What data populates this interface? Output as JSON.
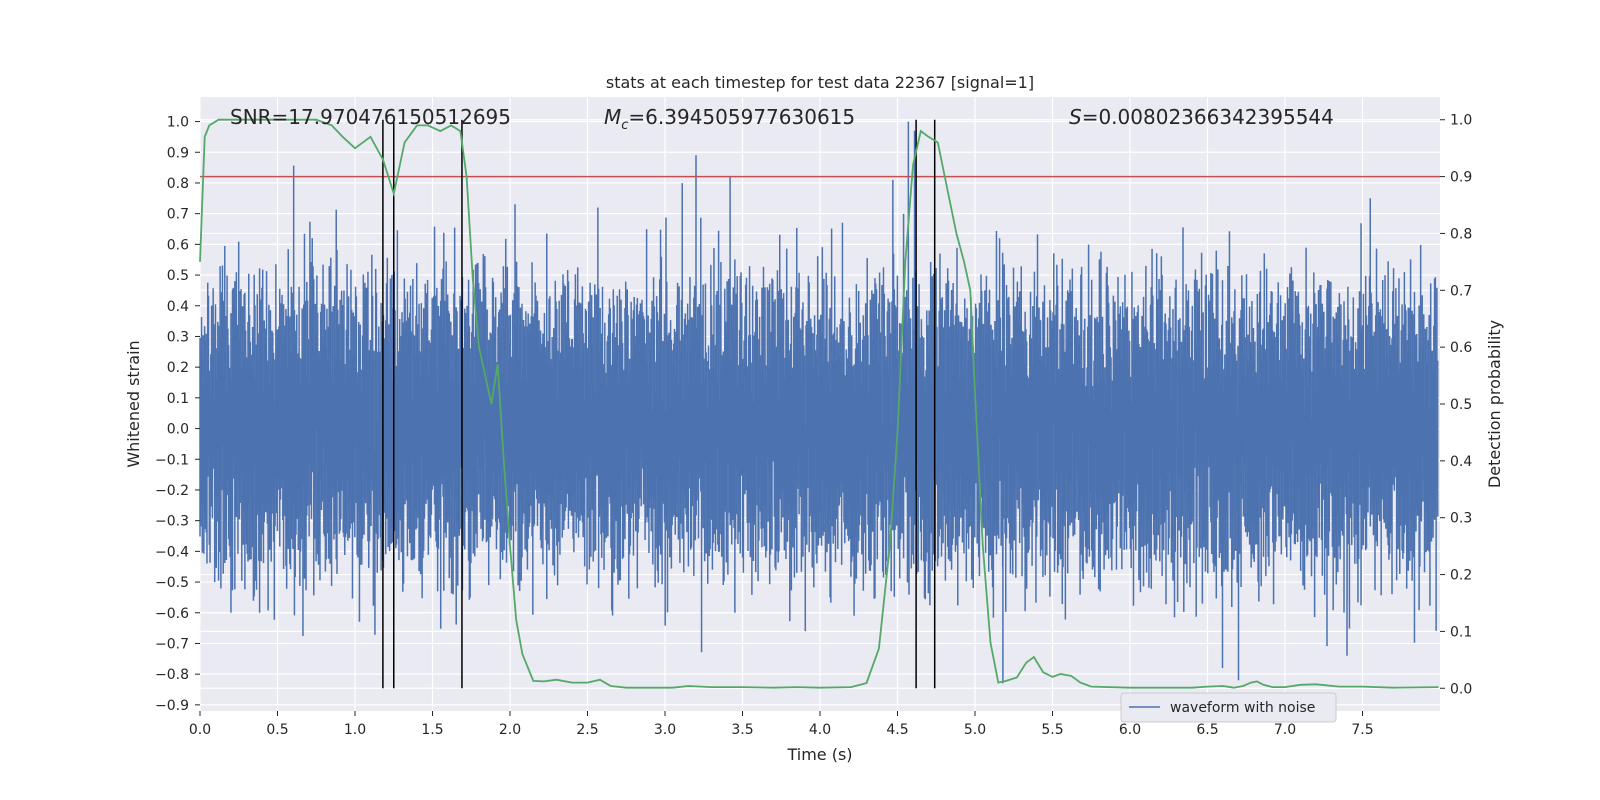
{
  "chart_data": {
    "type": "line",
    "title": "stats at each timestep for test data 22367 [signal=1]",
    "xlabel": "Time (s)",
    "ylabel": "Whitened strain",
    "y2label": "Detection probability",
    "xlim": [
      0.0,
      8.0
    ],
    "ylim": [
      -0.92,
      1.08
    ],
    "y2lim": [
      -0.04,
      1.04
    ],
    "x_ticks": [
      "0.0",
      "0.5",
      "1.0",
      "1.5",
      "2.0",
      "2.5",
      "3.0",
      "3.5",
      "4.0",
      "4.5",
      "5.0",
      "5.5",
      "6.0",
      "6.5",
      "7.0",
      "7.5"
    ],
    "y_ticks": [
      "1.0",
      "0.9",
      "0.8",
      "0.7",
      "0.6",
      "0.5",
      "0.4",
      "0.3",
      "0.2",
      "0.1",
      "0.0",
      "−0.1",
      "−0.2",
      "−0.3",
      "−0.4",
      "−0.5",
      "−0.6",
      "−0.7",
      "−0.8",
      "−0.9"
    ],
    "y2_ticks": [
      "1.0",
      "0.9",
      "0.8",
      "0.7",
      "0.6",
      "0.5",
      "0.4",
      "0.3",
      "0.2",
      "0.1",
      "0.0"
    ],
    "grid": true,
    "legend_position": "lower-right",
    "annotations": {
      "snr": "SNR=17.970476150512695",
      "mc_symbol": "M",
      "mc_sub": "c",
      "mc_value": "=6.394505977630615",
      "s_symbol": "S",
      "s_value": "=0.00802366342395544"
    },
    "threshold": {
      "y2": 0.9,
      "color": "#c44e52"
    },
    "vertical_lines_x": [
      1.18,
      1.25,
      1.69,
      4.62,
      4.74
    ],
    "series": [
      {
        "name": "waveform with noise",
        "axis": "left",
        "color": "#4c72b0",
        "envelope_hint": {
          "typical_amplitude": 0.3,
          "peak_max": 1.0,
          "peak_min": -0.83,
          "samples": 1600,
          "seed": 22367
        }
      },
      {
        "axis": "right",
        "color": "#55a868",
        "x": [
          0.0,
          0.03,
          0.06,
          0.12,
          0.2,
          0.3,
          0.45,
          0.6,
          0.75,
          0.85,
          0.92,
          1.0,
          1.1,
          1.18,
          1.25,
          1.32,
          1.4,
          1.47,
          1.55,
          1.62,
          1.68,
          1.72,
          1.76,
          1.8,
          1.84,
          1.88,
          1.92,
          1.96,
          2.0,
          2.04,
          2.08,
          2.15,
          2.22,
          2.3,
          2.4,
          2.5,
          2.58,
          2.65,
          2.75,
          2.9,
          3.05,
          3.15,
          3.3,
          3.5,
          3.7,
          3.85,
          4.0,
          4.2,
          4.3,
          4.38,
          4.45,
          4.5,
          4.55,
          4.6,
          4.65,
          4.7,
          4.76,
          4.82,
          4.88,
          4.93,
          4.97,
          5.0,
          5.05,
          5.1,
          5.15,
          5.2,
          5.27,
          5.33,
          5.38,
          5.44,
          5.5,
          5.55,
          5.62,
          5.68,
          5.75,
          6.0,
          6.2,
          6.4,
          6.5,
          6.6,
          6.67,
          6.73,
          6.78,
          6.82,
          6.86,
          6.92,
          7.0,
          7.1,
          7.2,
          7.35,
          7.5,
          7.7,
          7.99
        ],
        "y": [
          0.75,
          0.97,
          0.99,
          1.0,
          1.0,
          1.0,
          1.0,
          1.0,
          1.0,
          0.99,
          0.97,
          0.95,
          0.97,
          0.93,
          0.87,
          0.96,
          0.99,
          0.99,
          0.98,
          0.99,
          0.98,
          0.9,
          0.72,
          0.6,
          0.55,
          0.5,
          0.57,
          0.4,
          0.25,
          0.12,
          0.06,
          0.013,
          0.012,
          0.015,
          0.01,
          0.01,
          0.015,
          0.004,
          0.001,
          0.001,
          0.001,
          0.004,
          0.002,
          0.002,
          0.001,
          0.002,
          0.001,
          0.002,
          0.009,
          0.07,
          0.25,
          0.45,
          0.75,
          0.92,
          0.98,
          0.97,
          0.96,
          0.88,
          0.8,
          0.75,
          0.7,
          0.52,
          0.25,
          0.08,
          0.01,
          0.013,
          0.019,
          0.045,
          0.055,
          0.028,
          0.02,
          0.025,
          0.022,
          0.01,
          0.003,
          0.001,
          0.001,
          0.001,
          0.003,
          0.004,
          0.001,
          0.004,
          0.01,
          0.012,
          0.006,
          0.002,
          0.002,
          0.006,
          0.007,
          0.003,
          0.003,
          0.001,
          0.002
        ]
      }
    ]
  }
}
